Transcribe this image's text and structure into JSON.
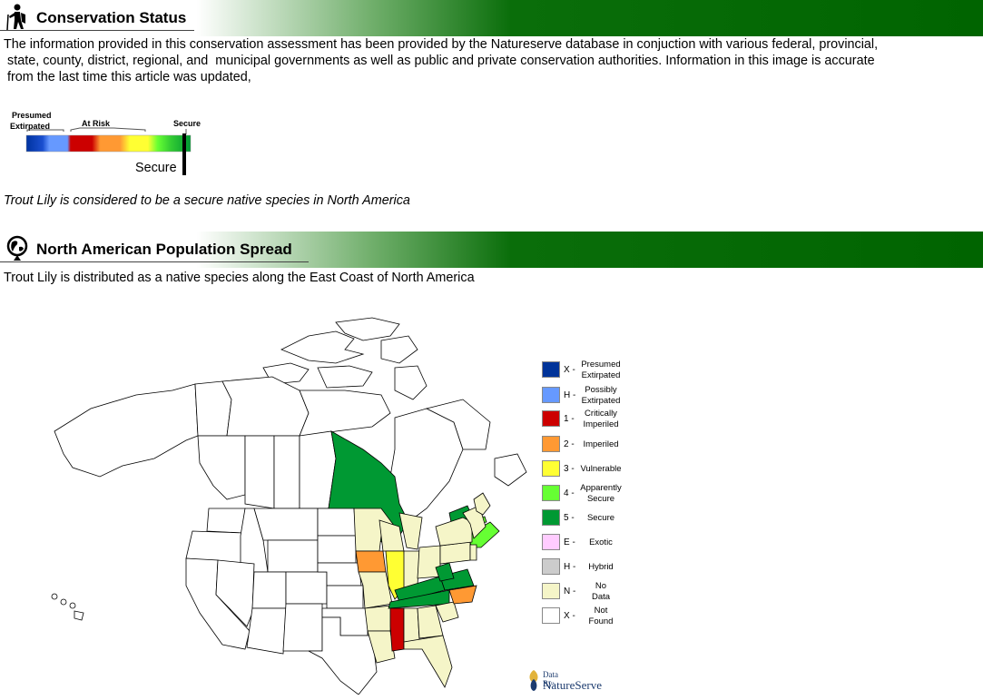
{
  "section1": {
    "title": "Conservation Status",
    "icon": "hiker-icon",
    "paragraph": "The information provided in this conservation assessment has been provided by the Natureserve database in conjuction with various federal, provincial, state, county, district, regional, and municipal governments as well as public and private conservation authorities. Information in this image is accurate from the last time this article was updated,",
    "paragraph_lines": [
      "The information provided in this conservation assessment has been provided by the Natureserve database in conjuction with various federal, provincial,",
      " state, county, district, regional, and  municipal governments as well as public and private conservation authorities. Information in this image is accurate",
      " from the last time this article was updated,"
    ]
  },
  "status_scale": {
    "label_presumed_1": "Presumed",
    "label_presumed_2": "Extirpated",
    "label_at_risk": "At Risk",
    "label_secure_top": "Secure",
    "indicator_label": "Secure",
    "colors": [
      "#0033a0",
      "#6699ff",
      "#cc0000",
      "#ff9933",
      "#ffff33",
      "#66ff33",
      "#009933"
    ]
  },
  "status_statement": "Trout Lily is considered to be a secure native species in North America",
  "section2": {
    "title": "North American Population Spread",
    "icon": "globe-pin-icon",
    "paragraph": "Trout Lily is distributed as a native species along the East Coast of North America"
  },
  "legend": [
    {
      "code": "X -",
      "name1": "Presumed",
      "name2": "Extirpated",
      "color": "#003399"
    },
    {
      "code": "H -",
      "name1": "Possibly",
      "name2": "Extirpated",
      "color": "#6699ff"
    },
    {
      "code": "1 -",
      "name1": "Critically",
      "name2": "Imperiled",
      "color": "#cc0000"
    },
    {
      "code": "2 -",
      "name1": "Imperiled",
      "name2": "",
      "color": "#ff9933"
    },
    {
      "code": "3 -",
      "name1": "Vulnerable",
      "name2": "",
      "color": "#ffff33"
    },
    {
      "code": "4 -",
      "name1": "Apparently",
      "name2": "Secure",
      "color": "#66ff33"
    },
    {
      "code": "5 -",
      "name1": "Secure",
      "name2": "",
      "color": "#009933"
    },
    {
      "code": "E -",
      "name1": "Exotic",
      "name2": "",
      "color": "#ffccff"
    },
    {
      "code": "H -",
      "name1": "Hybrid",
      "name2": "",
      "color": "#cccccc"
    },
    {
      "code": "N -",
      "name1": "No",
      "name2": "Data",
      "color": "#f5f5c8"
    },
    {
      "code": "X -",
      "name1": "Not",
      "name2": "Found",
      "color": "#ffffff"
    }
  ],
  "logo": {
    "small": "Data By:",
    "big": "NatureServe"
  },
  "map_colors": {
    "secure": "#009933",
    "apparently_secure": "#66ff33",
    "vulnerable": "#ffff33",
    "imperiled": "#ff9933",
    "critically_imperiled": "#cc0000",
    "no_data": "#f5f5c8",
    "not_found": "#ffffff"
  }
}
